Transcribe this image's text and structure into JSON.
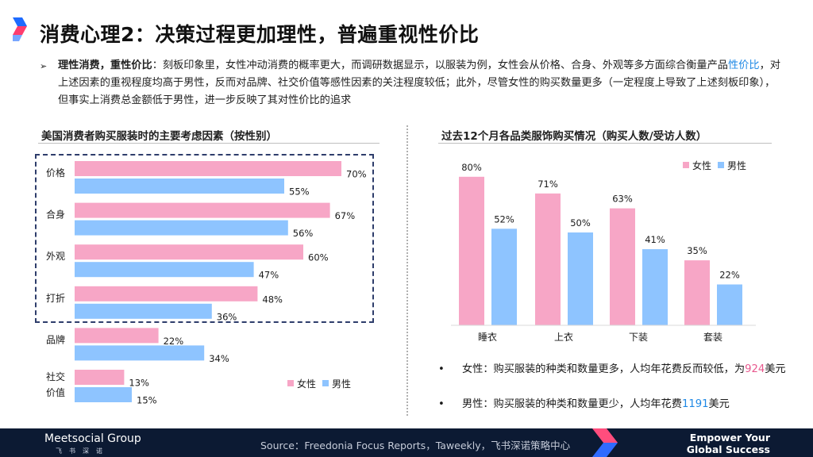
{
  "title": "消费心理2：决策过程更加理性，普遍重视性价比",
  "intro": {
    "bold": "理性消费，重性价比",
    "part1": "：刻板印象里，女性冲动消费的概率更大，而调研数据显示，以服装为例，女性会从价格、合身、外观等多方面综合衡量产品",
    "highlight": "性价比",
    "part2": "，对上述因素的重视程度均高于男性，反而对品牌、社交价值等感性因素的关注程度较低；此外，尽管女性的购买数量更多（一定程度上导致了上述刻板印象），但事实上消费总金额低于男性，进一步反映了其对性价比的追求"
  },
  "colors": {
    "female": "#f7a6c6",
    "male": "#8ec4ff",
    "accent_blue": "#1e88e5",
    "accent_pink": "#e8588e",
    "footer_bg": "#0c1a33"
  },
  "chart_data": [
    {
      "type": "bar",
      "orientation": "horizontal",
      "title": "美国消费者购买服装时的主要考虑因素（按性别）",
      "categories": [
        "价格",
        "合身",
        "外观",
        "打折",
        "品牌",
        "社交价值"
      ],
      "series": [
        {
          "name": "女性",
          "values": [
            70,
            67,
            60,
            48,
            22,
            13
          ]
        },
        {
          "name": "男性",
          "values": [
            55,
            56,
            47,
            36,
            34,
            15
          ]
        }
      ],
      "value_suffix": "%",
      "xlim": [
        0,
        100
      ],
      "legend": "bottom-right",
      "grid": false
    },
    {
      "type": "bar",
      "orientation": "vertical",
      "title": "过去12个月各品类服饰购买情况（购买人数/受访人数）",
      "categories": [
        "睡衣",
        "上衣",
        "下装",
        "套装"
      ],
      "series": [
        {
          "name": "女性",
          "values": [
            80,
            71,
            63,
            35
          ]
        },
        {
          "name": "男性",
          "values": [
            52,
            50,
            41,
            22
          ]
        }
      ],
      "value_suffix": "%",
      "ylim": [
        0,
        100
      ],
      "legend": "top-right",
      "grid": false
    }
  ],
  "right_bullets": [
    {
      "dot": "•",
      "prefix": "女性：购买服装的种类和数量更多，人均年花费反而较低，为",
      "number": "924",
      "suffix": "美元"
    },
    {
      "dot": "•",
      "prefix": "男性：购买服装的种类和数量更少，人均年花费",
      "number": "1191",
      "suffix": "美元"
    }
  ],
  "footer": {
    "logo": "Meetsocial Group",
    "logo_sub": "飞书深诺",
    "source": "Source：Freedonia Focus Reports，Taweekly，飞书深诺策略中心",
    "slogan_line1": "Empower Your",
    "slogan_line2": "Global Success"
  }
}
